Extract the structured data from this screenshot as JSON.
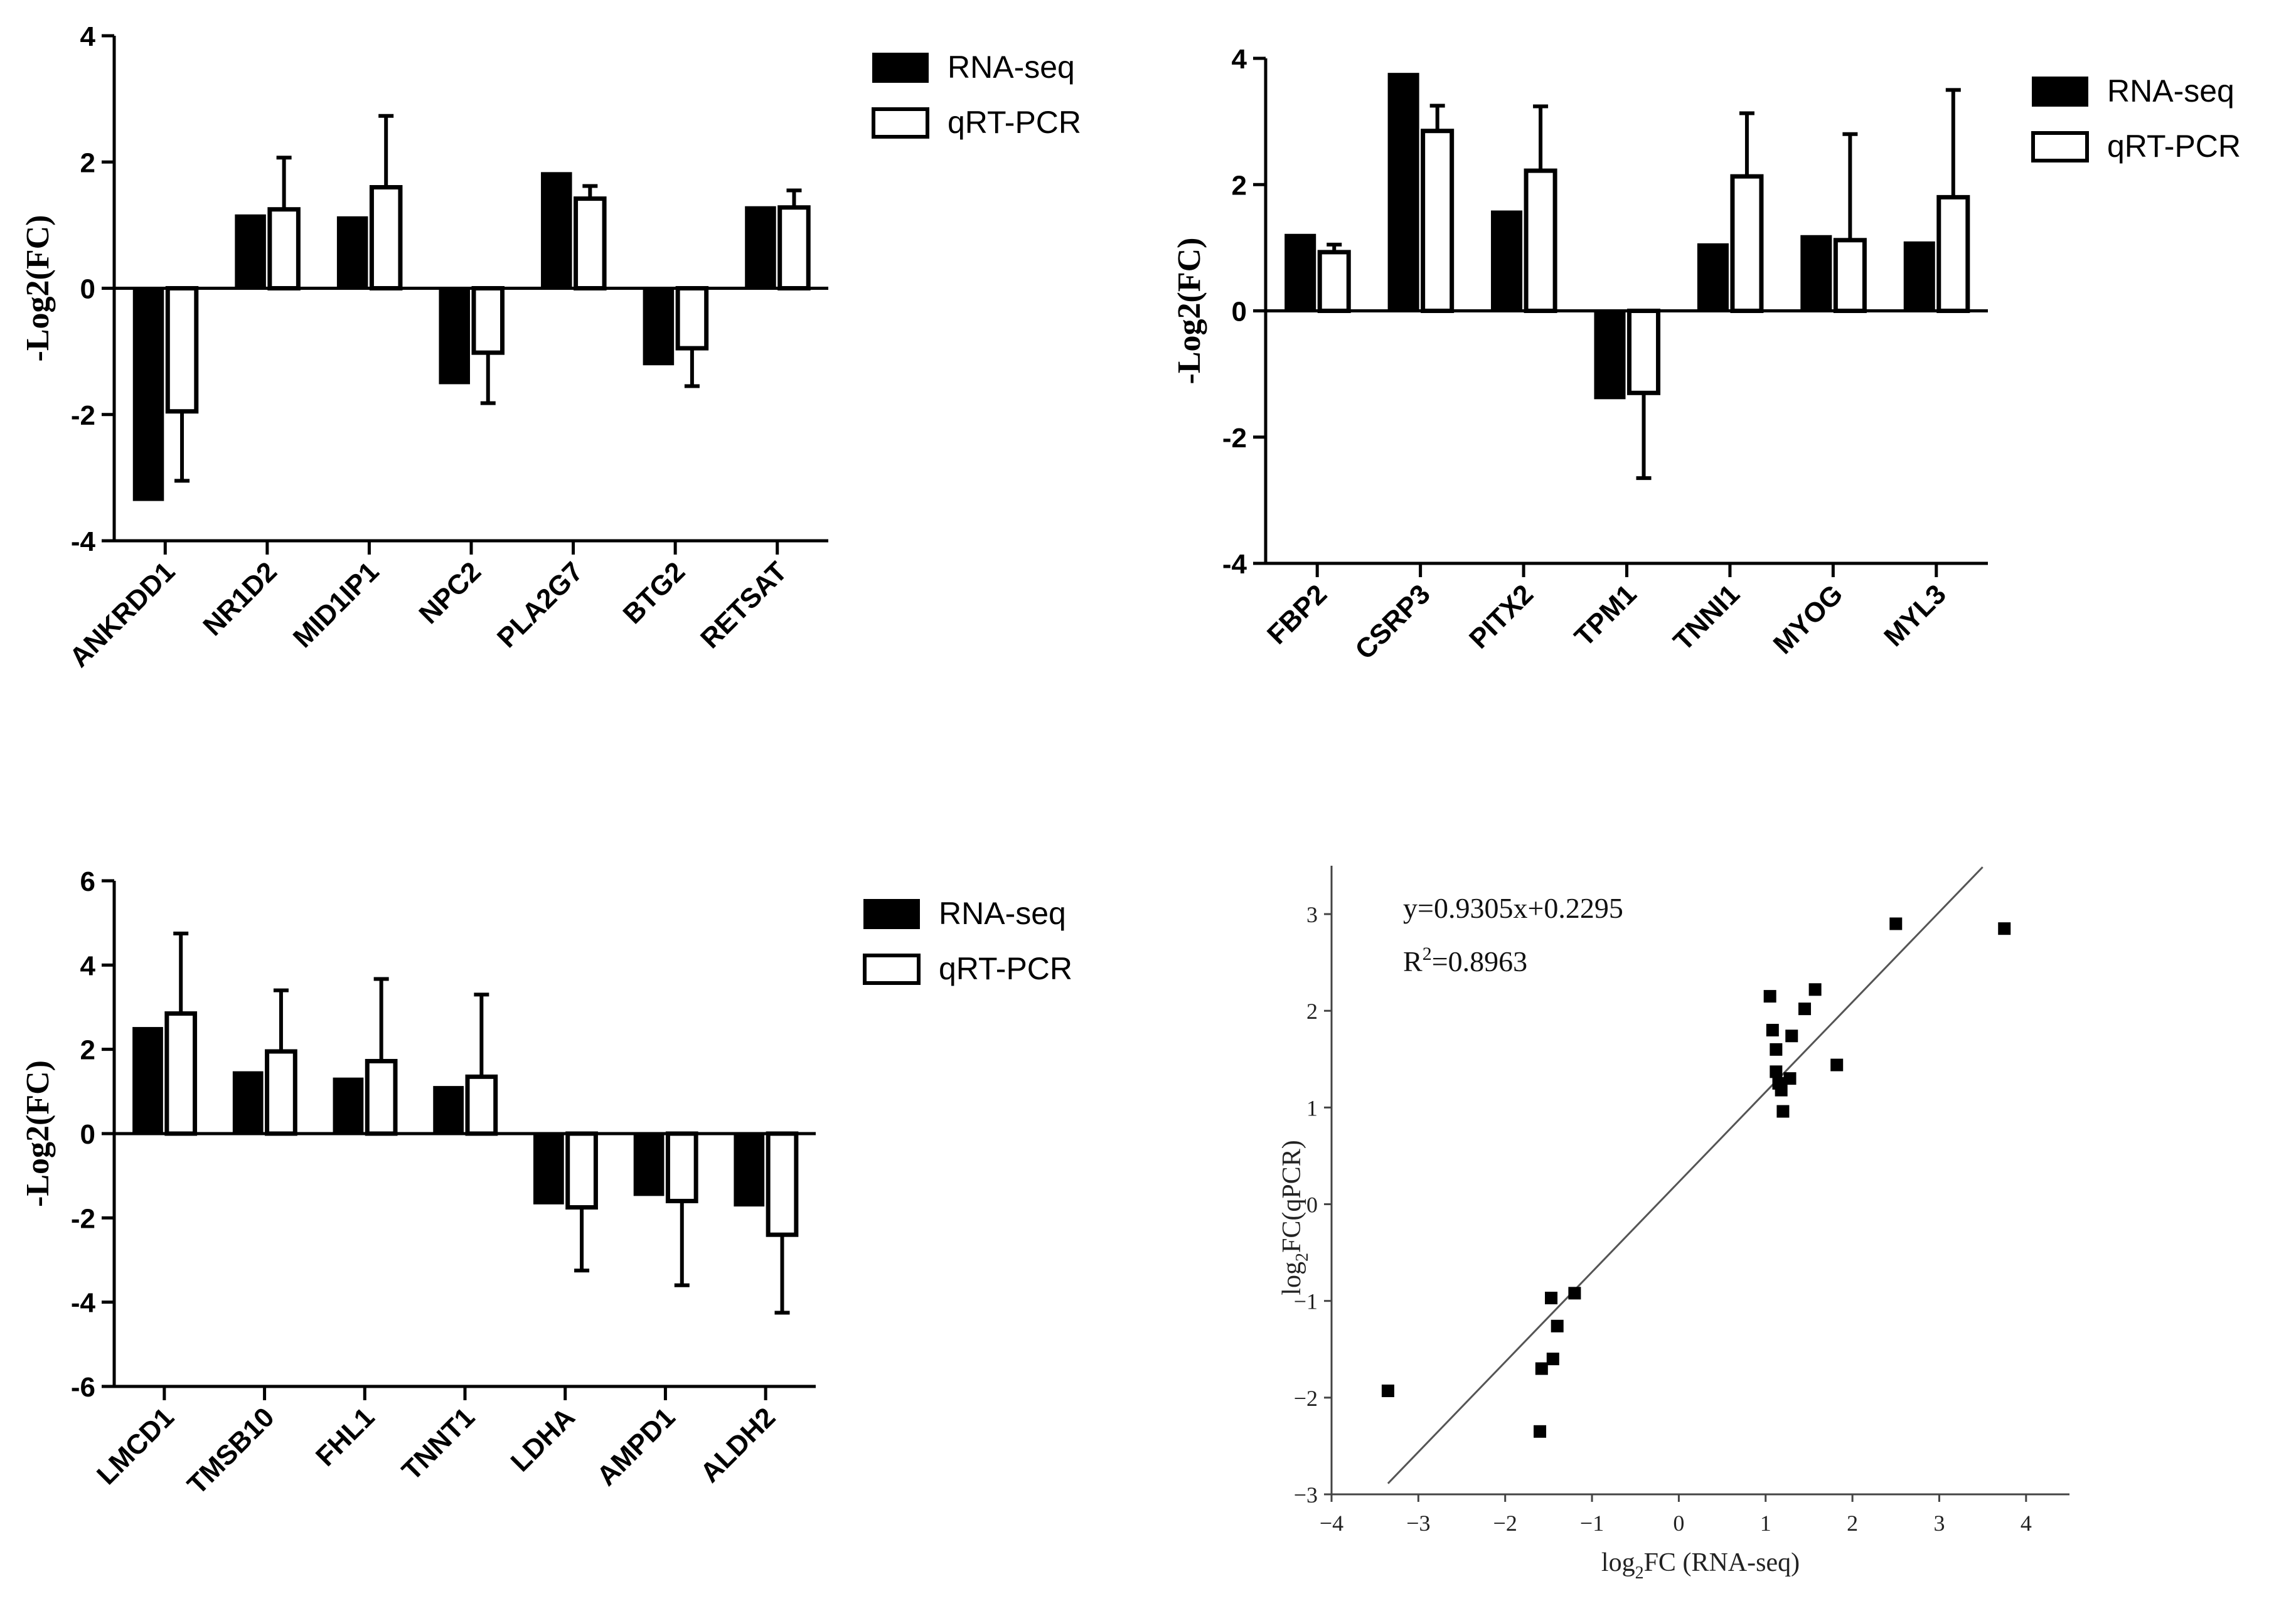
{
  "chart_data": [
    {
      "type": "bar",
      "ylabel": "-Log2(FC)",
      "ylim": [
        -4,
        4
      ],
      "yticks": [
        -4,
        -2,
        0,
        2,
        4
      ],
      "categories": [
        "ANKRDD1",
        "NR1D2",
        "MID1IP1",
        "NPC2",
        "PLA2G7",
        "BTG2",
        "RETSAT"
      ],
      "series": [
        {
          "name": "RNA-seq",
          "values": [
            -3.35,
            1.15,
            1.12,
            -1.5,
            1.82,
            -1.2,
            1.28
          ]
        },
        {
          "name": "qRT-PCR",
          "values": [
            -1.95,
            1.25,
            1.6,
            -1.02,
            1.42,
            -0.95,
            1.28
          ],
          "errors": [
            1.1,
            0.82,
            1.13,
            0.8,
            0.2,
            0.6,
            0.27
          ]
        }
      ],
      "legend": [
        "RNA-seq",
        "qRT-PCR"
      ]
    },
    {
      "type": "bar",
      "ylabel": "-Log2(FC)",
      "ylim": [
        -4,
        4
      ],
      "yticks": [
        -4,
        -2,
        0,
        2,
        4
      ],
      "categories": [
        "FBP2",
        "CSRP3",
        "PITX2",
        "TPM1",
        "TNNI1",
        "MYOG",
        "MYL3"
      ],
      "series": [
        {
          "name": "RNA-seq",
          "values": [
            1.2,
            3.75,
            1.57,
            -1.38,
            1.05,
            1.18,
            1.08
          ]
        },
        {
          "name": "qRT-PCR",
          "values": [
            0.93,
            2.85,
            2.22,
            -1.3,
            2.13,
            1.12,
            1.8
          ],
          "errors": [
            0.12,
            0.4,
            1.02,
            1.35,
            1.0,
            1.68,
            1.7
          ]
        }
      ],
      "legend": [
        "RNA-seq",
        "qRT-PCR"
      ]
    },
    {
      "type": "bar",
      "ylabel": "-Log2(FC)",
      "ylim": [
        -6,
        6
      ],
      "yticks": [
        -6,
        -4,
        -2,
        0,
        2,
        4,
        6
      ],
      "categories": [
        "LMCD1",
        "TMSB10",
        "FHL1",
        "TNNT1",
        "LDHA",
        "AMPD1",
        "ALDH2"
      ],
      "series": [
        {
          "name": "RNA-seq",
          "values": [
            2.5,
            1.45,
            1.3,
            1.1,
            -1.65,
            -1.45,
            -1.7
          ]
        },
        {
          "name": "qRT-PCR",
          "values": [
            2.85,
            1.95,
            1.72,
            1.35,
            -1.75,
            -1.6,
            -2.4
          ],
          "errors": [
            1.9,
            1.45,
            1.95,
            1.95,
            1.5,
            2.0,
            1.85
          ]
        }
      ],
      "legend": [
        "RNA-seq",
        "qRT-PCR"
      ]
    },
    {
      "type": "scatter",
      "xlabel": "log2FC (RNA-seq)",
      "ylabel": "log2FC(qPCR)",
      "xlim": [
        -4,
        4.5
      ],
      "ylim": [
        -3,
        3.5
      ],
      "xticks": [
        -4,
        -3,
        -2,
        -1,
        0,
        1,
        2,
        3,
        4
      ],
      "yticks": [
        -3,
        -2,
        -1,
        0,
        1,
        2,
        3
      ],
      "equation": "y=0.9305x+0.2295",
      "r2_label": "R",
      "r2_sup": "2",
      "r2_value": "=0.8963",
      "fit": {
        "slope": 0.9305,
        "intercept": 0.2295,
        "x_range": [
          -3.35,
          3.5
        ]
      },
      "points": [
        {
          "x": -3.35,
          "y": -1.93
        },
        {
          "x": -1.6,
          "y": -2.35
        },
        {
          "x": -1.58,
          "y": -1.7
        },
        {
          "x": -1.47,
          "y": -0.97
        },
        {
          "x": -1.45,
          "y": -1.6
        },
        {
          "x": -1.4,
          "y": -1.26
        },
        {
          "x": -1.2,
          "y": -0.92
        },
        {
          "x": 1.05,
          "y": 2.15
        },
        {
          "x": 1.08,
          "y": 1.8
        },
        {
          "x": 1.12,
          "y": 1.6
        },
        {
          "x": 1.12,
          "y": 1.37
        },
        {
          "x": 1.15,
          "y": 1.25
        },
        {
          "x": 1.18,
          "y": 1.18
        },
        {
          "x": 1.2,
          "y": 0.96
        },
        {
          "x": 1.28,
          "y": 1.3
        },
        {
          "x": 1.3,
          "y": 1.74
        },
        {
          "x": 1.45,
          "y": 2.02
        },
        {
          "x": 1.57,
          "y": 2.22
        },
        {
          "x": 1.82,
          "y": 1.44
        },
        {
          "x": 2.5,
          "y": 2.9
        },
        {
          "x": 3.75,
          "y": 2.85
        }
      ]
    }
  ]
}
